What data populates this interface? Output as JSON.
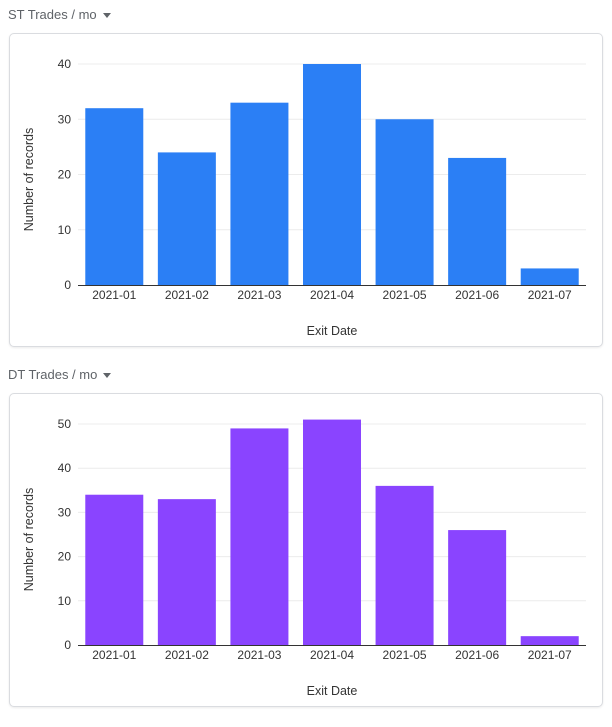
{
  "sections": [
    {
      "title": "ST Trades / mo",
      "caret_icon": "caret-down-icon"
    },
    {
      "title": "DT Trades / mo",
      "caret_icon": "caret-down-icon"
    }
  ],
  "chart_data": [
    {
      "type": "bar",
      "title": "ST Trades / mo",
      "categories": [
        "2021-01",
        "2021-02",
        "2021-03",
        "2021-04",
        "2021-05",
        "2021-06",
        "2021-07"
      ],
      "values": [
        32,
        24,
        33,
        40,
        30,
        23,
        3
      ],
      "xlabel": "Exit Date",
      "ylabel": "Number of records",
      "ylim": [
        0,
        40
      ],
      "yticks": [
        0,
        10,
        20,
        30,
        40
      ],
      "grid": true,
      "color": "#2b7ff5"
    },
    {
      "type": "bar",
      "title": "DT Trades / mo",
      "categories": [
        "2021-01",
        "2021-02",
        "2021-03",
        "2021-04",
        "2021-05",
        "2021-06",
        "2021-07"
      ],
      "values": [
        34,
        33,
        49,
        51,
        36,
        26,
        2
      ],
      "xlabel": "Exit Date",
      "ylabel": "Number of records",
      "ylim": [
        0,
        50
      ],
      "yticks": [
        0,
        10,
        20,
        30,
        40,
        50
      ],
      "grid": true,
      "color": "#8a44ff"
    }
  ]
}
